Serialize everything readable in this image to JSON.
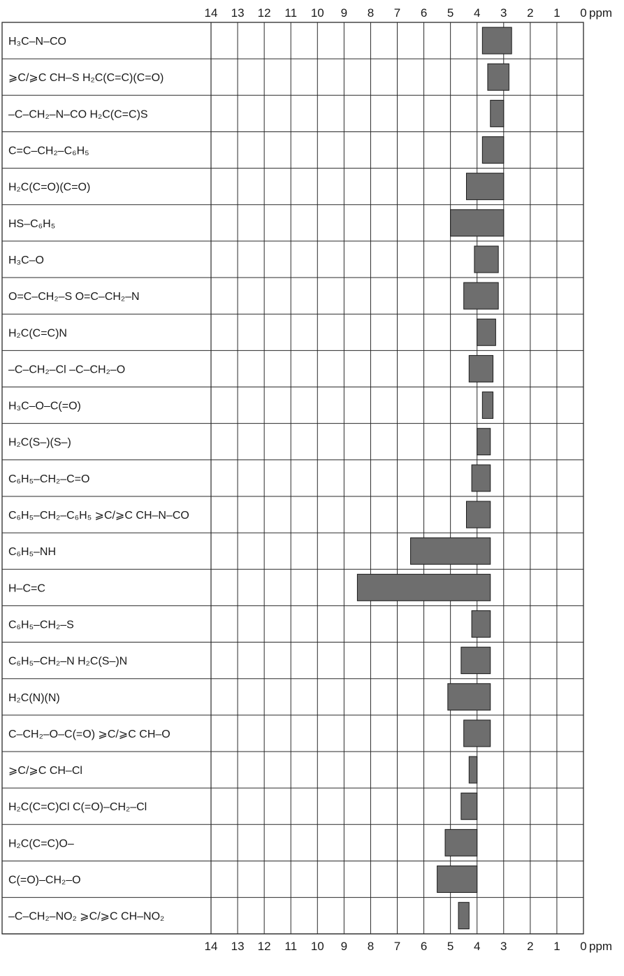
{
  "chart_data": {
    "type": "range-bar",
    "x_axis": {
      "reversed": true,
      "min": 0,
      "max": 14,
      "ticks": [
        14,
        13,
        12,
        11,
        10,
        9,
        8,
        7,
        6,
        5,
        4,
        3,
        2,
        1,
        0
      ],
      "unit": "ppm",
      "positions": [
        "top",
        "bottom"
      ]
    },
    "grid": true,
    "bar_color": "#6e6e6e",
    "rows": [
      {
        "label": "H₃C–N–CO",
        "low": 2.7,
        "high": 3.8
      },
      {
        "label": "⩾C/⩾C CH–S    H₂C(C=C)(C=O)",
        "low": 2.8,
        "high": 3.6
      },
      {
        "label": "–C–CH₂–N–CO    H₂C(C=C)S",
        "low": 3.0,
        "high": 3.5
      },
      {
        "label": "C=C–CH₂–C₆H₅",
        "low": 3.0,
        "high": 3.8
      },
      {
        "label": "H₂C(C=O)(C=O)",
        "low": 3.0,
        "high": 4.4
      },
      {
        "label": "HS–C₆H₅",
        "low": 3.0,
        "high": 5.0
      },
      {
        "label": "H₃C–O",
        "low": 3.2,
        "high": 4.1
      },
      {
        "label": "O=C–CH₂–S    O=C–CH₂–N",
        "low": 3.2,
        "high": 4.5
      },
      {
        "label": "H₂C(C=C)N",
        "low": 3.3,
        "high": 4.0
      },
      {
        "label": "–C–CH₂–Cl    –C–CH₂–O",
        "low": 3.4,
        "high": 4.3
      },
      {
        "label": "H₃C–O–C(=O)",
        "low": 3.4,
        "high": 3.8
      },
      {
        "label": "H₂C(S–)(S–)",
        "low": 3.5,
        "high": 4.0
      },
      {
        "label": "C₆H₅–CH₂–C=O",
        "low": 3.5,
        "high": 4.2
      },
      {
        "label": "C₆H₅–CH₂–C₆H₅    ⩾C/⩾C CH–N–CO",
        "low": 3.5,
        "high": 4.4
      },
      {
        "label": "C₆H₅–NH",
        "low": 3.5,
        "high": 6.5
      },
      {
        "label": "H–C=C",
        "low": 3.5,
        "high": 8.5
      },
      {
        "label": "C₆H₅–CH₂–S",
        "low": 3.5,
        "high": 4.2
      },
      {
        "label": "C₆H₅–CH₂–N    H₂C(S–)N",
        "low": 3.5,
        "high": 4.6
      },
      {
        "label": "H₂C(N)(N)",
        "low": 3.5,
        "high": 5.1
      },
      {
        "label": "C–CH₂–O–C(=O)    ⩾C/⩾C CH–O",
        "low": 3.5,
        "high": 4.5
      },
      {
        "label": "⩾C/⩾C CH–Cl",
        "low": 4.0,
        "high": 4.3
      },
      {
        "label": "H₂C(C=C)Cl    C(=O)–CH₂–Cl",
        "low": 4.0,
        "high": 4.6
      },
      {
        "label": "H₂C(C=C)O–",
        "low": 4.0,
        "high": 5.2
      },
      {
        "label": "C(=O)–CH₂–O",
        "low": 4.0,
        "high": 5.5
      },
      {
        "label": "–C–CH₂–NO₂    ⩾C/⩾C CH–NO₂",
        "low": 4.3,
        "high": 4.7
      }
    ]
  }
}
